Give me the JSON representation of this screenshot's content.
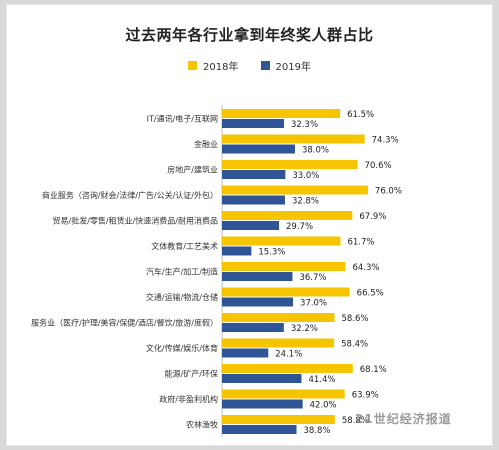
{
  "title": "过去两年各行业拿到年终奖人群占比",
  "watermark": "21世纪经济报道",
  "colors": {
    "s2018": "#f7c500",
    "s2019": "#2f5597",
    "axis": "#bfbfbf"
  },
  "chart_data": {
    "type": "bar",
    "orientation": "horizontal",
    "title": "过去两年各行业拿到年终奖人群占比",
    "categories": [
      "IT/通讯/电子/互联网",
      "金融业",
      "房地产/建筑业",
      "商业服务（咨询/财会/法律/广告/公关/认证/外包）",
      "贸易/批发/零售/租赁业/快速消费品/耐用消费品",
      "文体教育/工艺美术",
      "汽车/生产/加工/制造",
      "交通/运输/物流/仓储",
      "服务业（医疗/护理/美容/保健/酒店/餐饮/旅游/度假）",
      "文化/传媒/娱乐/体育",
      "能源/矿产/环保",
      "政府/非盈利机构",
      "农林渔牧"
    ],
    "series": [
      {
        "name": "2018年",
        "values": [
          61.5,
          74.3,
          70.6,
          76.0,
          67.9,
          61.7,
          64.3,
          66.5,
          58.6,
          58.4,
          68.1,
          63.9,
          58.8
        ]
      },
      {
        "name": "2019年",
        "values": [
          32.3,
          38.0,
          33.0,
          32.8,
          29.7,
          15.3,
          36.7,
          37.0,
          32.2,
          24.1,
          41.4,
          42.0,
          38.8
        ]
      }
    ],
    "value_suffix": "%",
    "xlim": [
      0,
      100
    ],
    "legend_position": "top-center",
    "grid": false
  }
}
